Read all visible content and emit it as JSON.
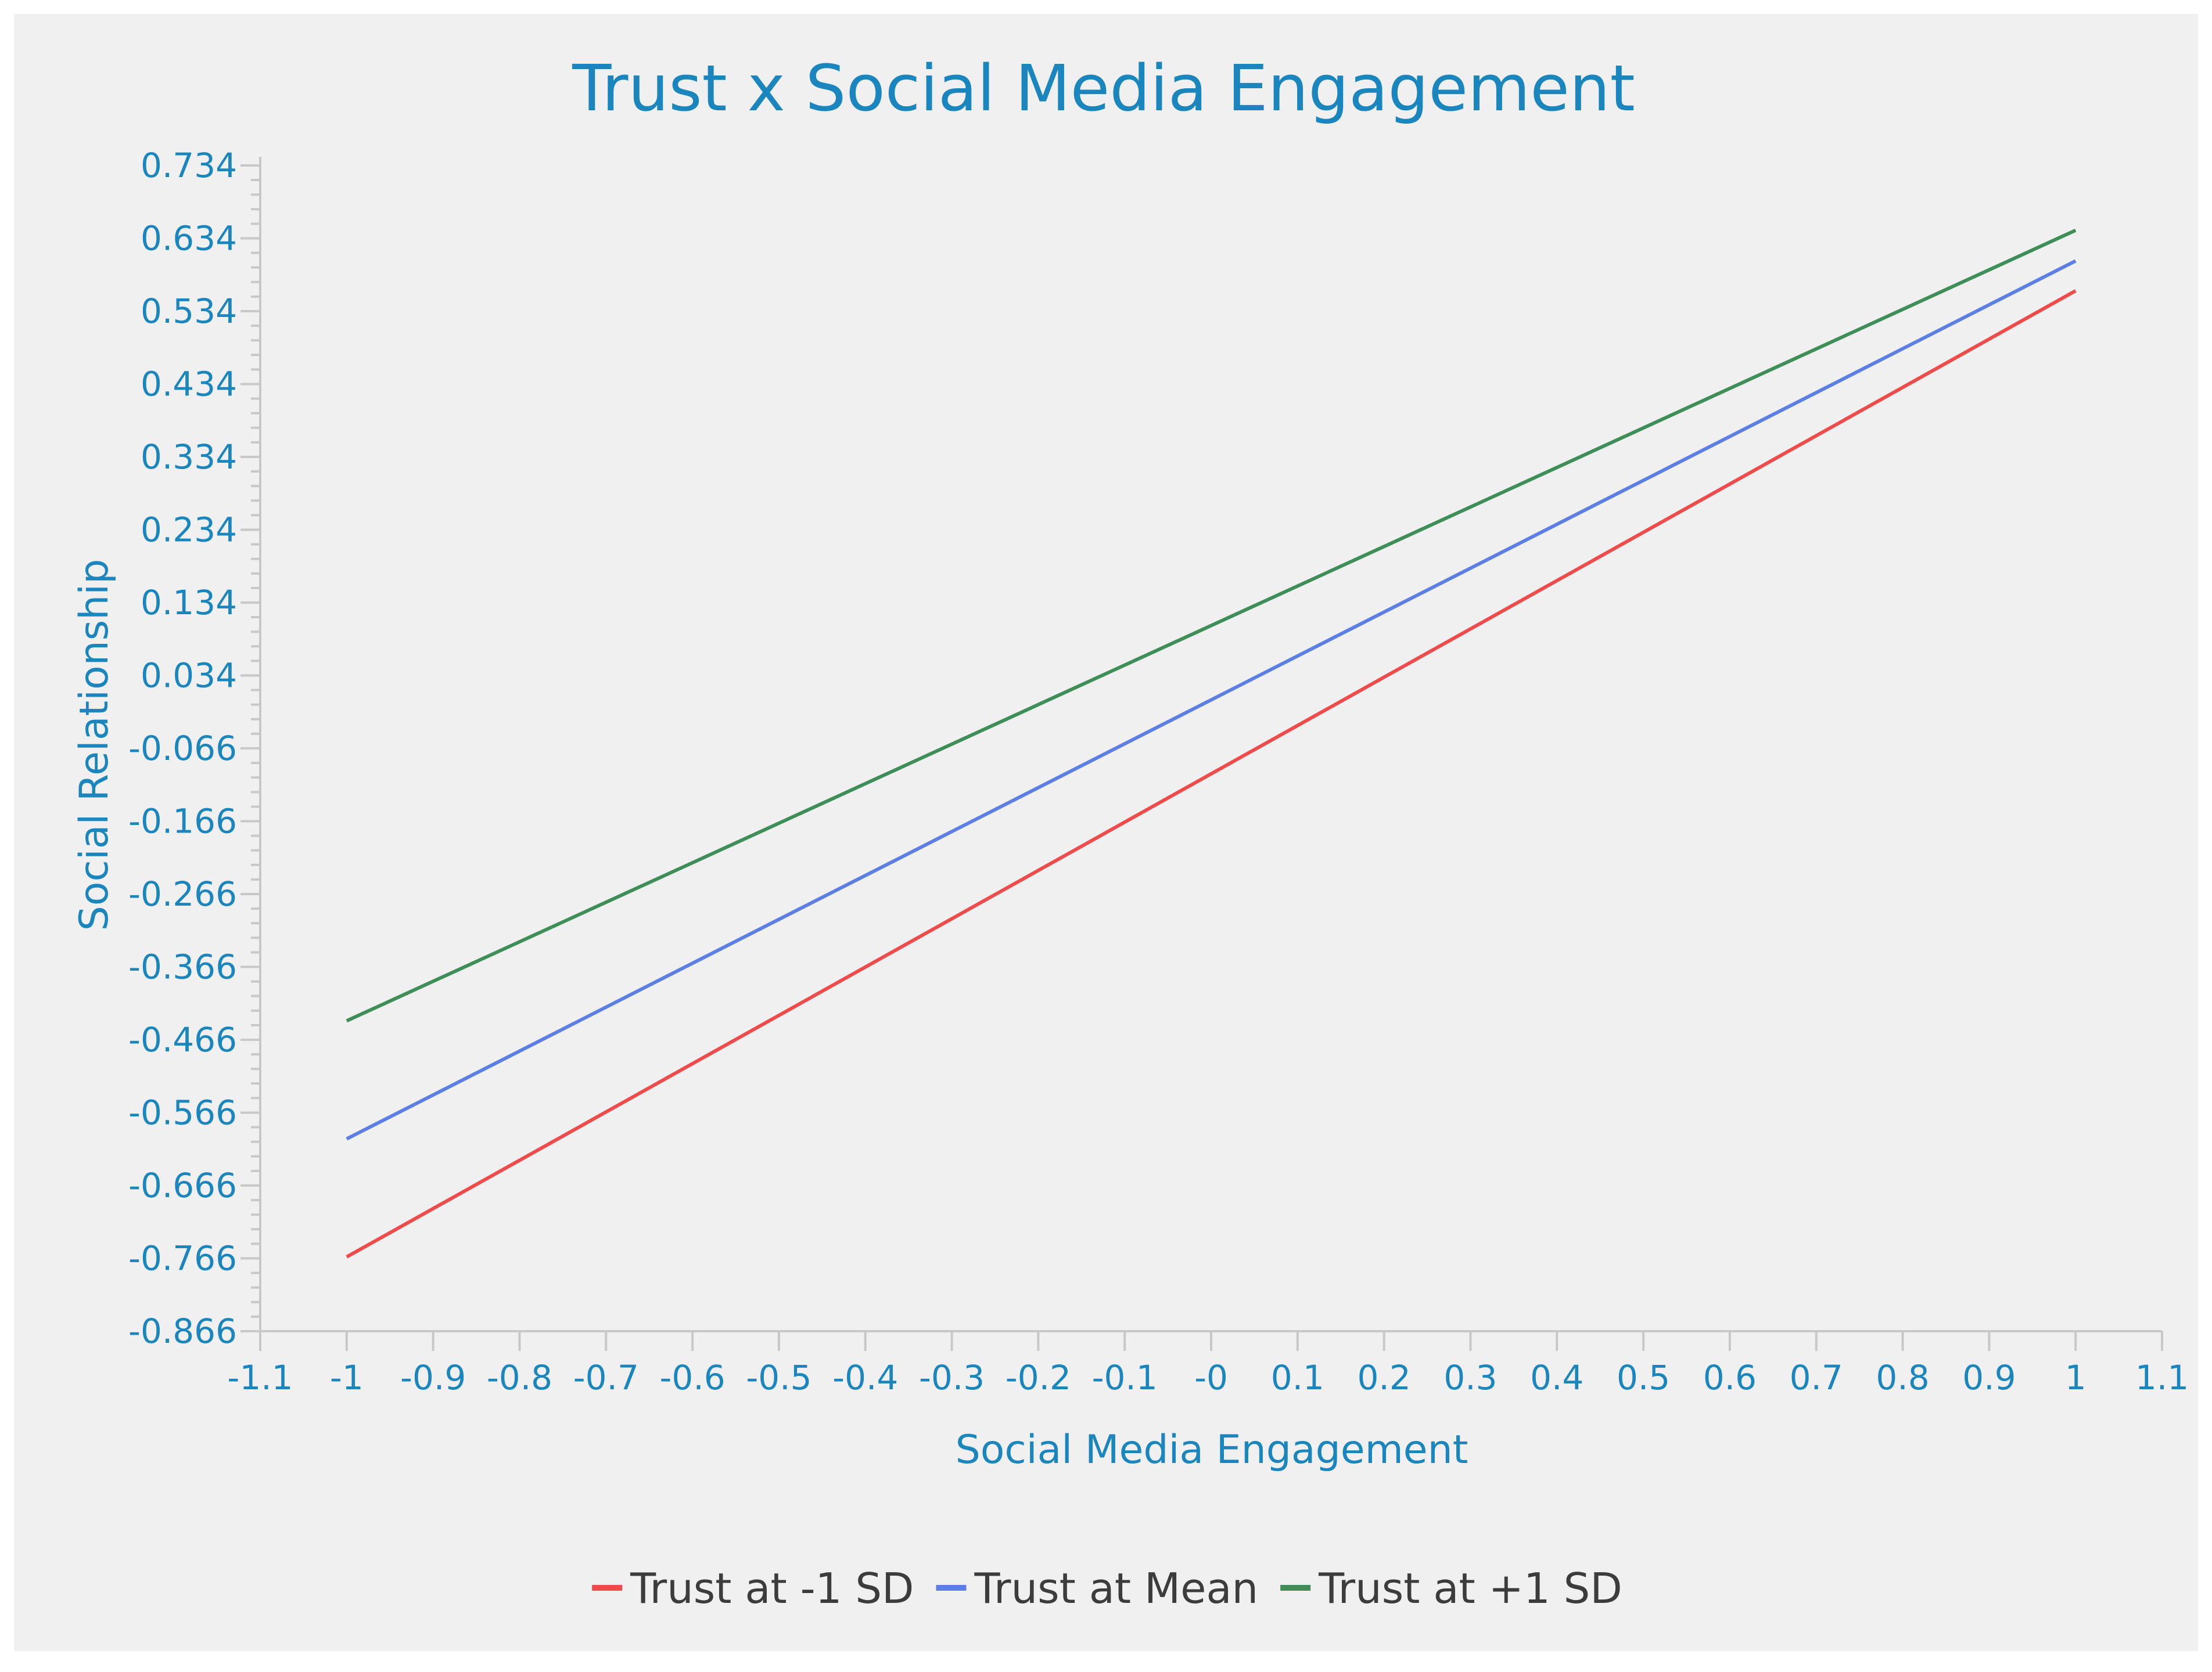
{
  "chart_data": {
    "type": "line",
    "title": "Trust x Social Media Engagement",
    "xlabel": "Social Media Engagement",
    "ylabel": "Social Relationship",
    "xlim": [
      -1.1,
      1.1
    ],
    "ylim": [
      -0.866,
      0.734
    ],
    "x_ticks": [
      "-1.1",
      "-1",
      "-0.9",
      "-0.8",
      "-0.7",
      "-0.6",
      "-0.5",
      "-0.4",
      "-0.3",
      "-0.2",
      "-0.1",
      "-0",
      "0.1",
      "0.2",
      "0.3",
      "0.4",
      "0.5",
      "0.6",
      "0.7",
      "0.8",
      "0.9",
      "1",
      "1.1"
    ],
    "y_ticks": [
      "0.734",
      "0.634",
      "0.534",
      "0.434",
      "0.334",
      "0.234",
      "0.134",
      "0.034",
      "-0.066",
      "-0.166",
      "-0.266",
      "-0.366",
      "-0.466",
      "-0.566",
      "-0.666",
      "-0.766",
      "-0.866"
    ],
    "legend_position": "bottom-center",
    "grid": false,
    "series": [
      {
        "name": "Trust at -1 SD",
        "color": "#f04b4b",
        "x": [
          -1,
          1
        ],
        "y": [
          -0.764,
          0.562
        ]
      },
      {
        "name": "Trust at Mean",
        "color": "#5b7fe5",
        "x": [
          -1,
          1
        ],
        "y": [
          -0.602,
          0.603
        ]
      },
      {
        "name": "Trust at +1 SD",
        "color": "#3d8f57",
        "x": [
          -1,
          1
        ],
        "y": [
          -0.44,
          0.645
        ]
      }
    ]
  }
}
